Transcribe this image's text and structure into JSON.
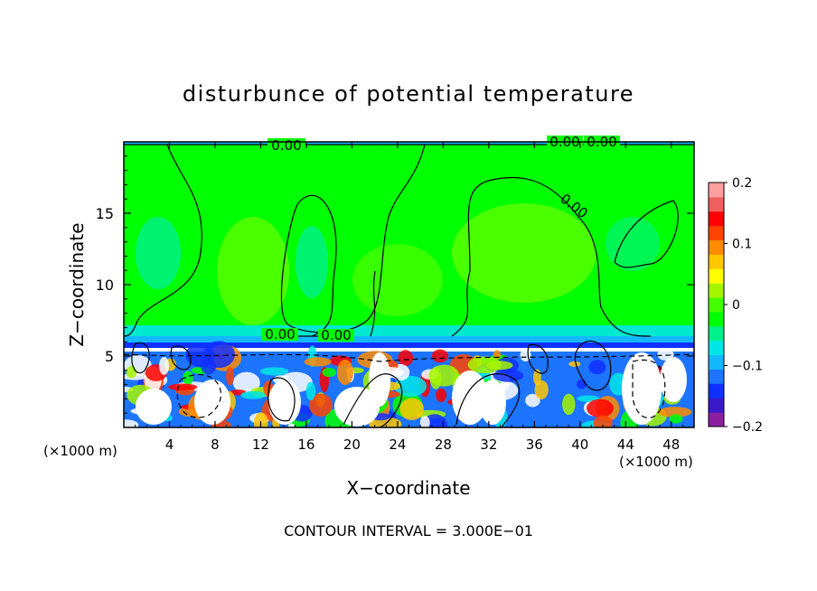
{
  "chart_data": {
    "type": "heatmap",
    "title": "disturbunce of potential temperature",
    "xlabel": "X−coordinate",
    "ylabel": "Z−coordinate",
    "x_unit": "(×1000 m)",
    "x_unit_right": "(×1000 m)",
    "xlim": [
      0,
      50
    ],
    "ylim": [
      0,
      20
    ],
    "x_ticks": [
      4,
      8,
      12,
      16,
      20,
      24,
      28,
      32,
      36,
      40,
      44,
      48
    ],
    "y_ticks": [
      5,
      10,
      15
    ],
    "colorbar": {
      "range": [
        -0.2,
        0.2
      ],
      "ticks": [
        {
          "value": 0.2,
          "label": "0.2"
        },
        {
          "value": 0.1,
          "label": "0.1"
        },
        {
          "value": 0,
          "label": "0"
        },
        {
          "value": -0.1,
          "label": "−0.1"
        },
        {
          "value": -0.2,
          "label": "−0.2"
        }
      ],
      "colors": [
        "#8b1f9e",
        "#3a18c8",
        "#1030ff",
        "#1c74ff",
        "#14b8ff",
        "#00e6e6",
        "#00f08c",
        "#00ff00",
        "#44ff00",
        "#a4f500",
        "#ffff00",
        "#ffc800",
        "#ff8c00",
        "#ff4400",
        "#ff0000",
        "#f06060",
        "#ff9fa0"
      ]
    },
    "contour_labels": [
      "0.00",
      "0.00",
      "0.00",
      "0.00",
      "0.00",
      "0.00"
    ],
    "footer": "CONTOUR INTERVAL = 3.000E−01"
  }
}
